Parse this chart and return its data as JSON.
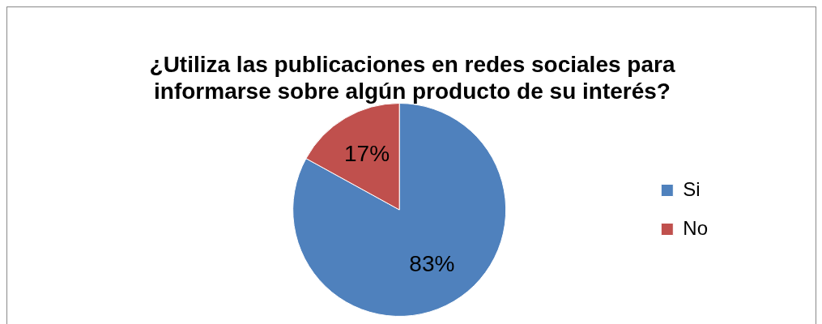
{
  "chart_data": {
    "type": "pie",
    "title": "¿Utiliza las publicaciones en redes sociales para informarse sobre algún producto de su interés?",
    "categories": [
      "Si",
      "No"
    ],
    "values": [
      83,
      17
    ],
    "value_labels": [
      "83%",
      "17%"
    ],
    "colors": [
      "#4f81bd",
      "#c0504d"
    ],
    "legend": "right"
  }
}
